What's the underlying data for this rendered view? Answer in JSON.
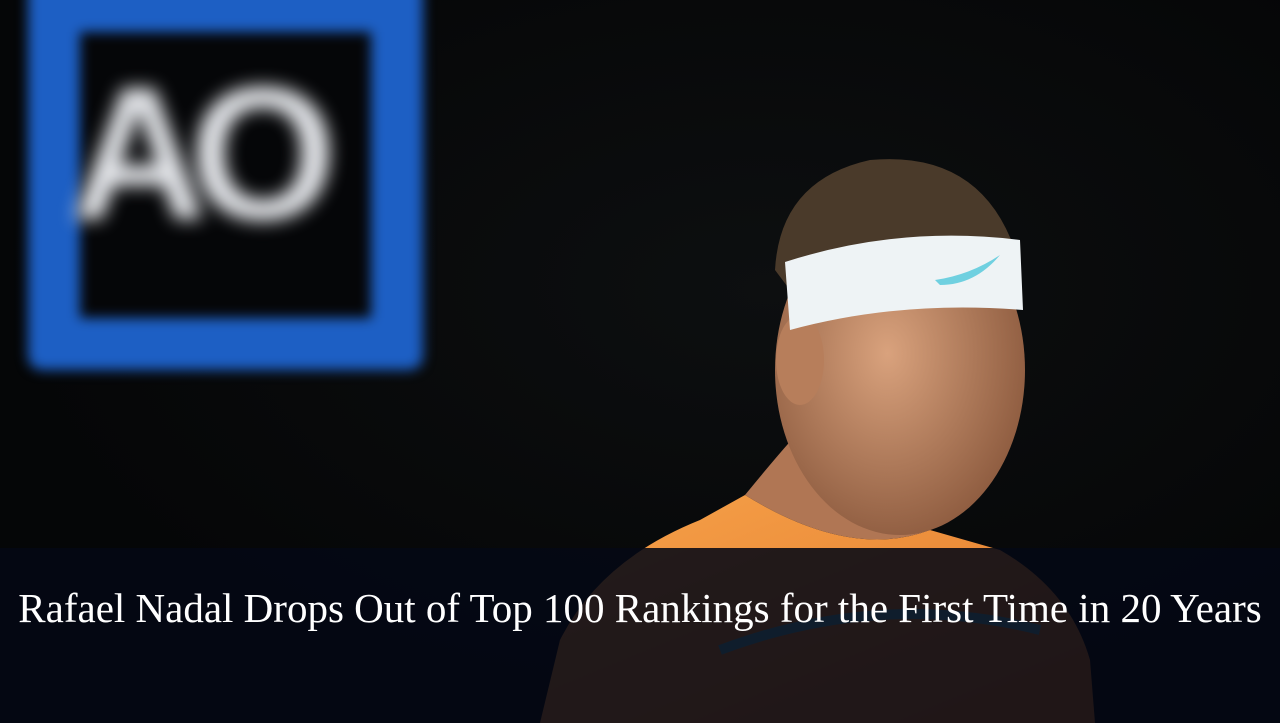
{
  "image": {
    "logo_text": "AO",
    "colors": {
      "logo_blue": "#1d5fc4",
      "shirt_orange": "#f0953f",
      "headband": "#eef3f5",
      "caption_bg": "#040814"
    }
  },
  "caption": {
    "headline": "Rafael Nadal Drops Out of Top 100 Rankings for the First Time in 20 Years"
  }
}
